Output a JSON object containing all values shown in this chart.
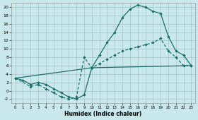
{
  "xlabel": "Humidex (Indice chaleur)",
  "background_color": "#c8e8ec",
  "grid_color": "#9bbcbe",
  "line_color": "#1a6e68",
  "xlim": [
    -0.5,
    23.5
  ],
  "ylim": [
    -3.0,
    21.0
  ],
  "xticks": [
    0,
    1,
    2,
    3,
    4,
    5,
    6,
    7,
    8,
    9,
    10,
    11,
    12,
    13,
    14,
    15,
    16,
    17,
    18,
    19,
    20,
    21,
    22,
    23
  ],
  "yticks": [
    -2,
    0,
    2,
    4,
    6,
    8,
    10,
    12,
    14,
    16,
    18,
    20
  ],
  "curve1_x": [
    0,
    1,
    2,
    3,
    4,
    5,
    6,
    7,
    8,
    9,
    10,
    11,
    12,
    13,
    14,
    15,
    16,
    17,
    18,
    19,
    20,
    21,
    22,
    23
  ],
  "curve1_y": [
    3.0,
    2.5,
    1.5,
    2.0,
    1.5,
    0.5,
    -0.5,
    -1.5,
    -2.0,
    -1.0,
    5.5,
    8.5,
    11.5,
    14.0,
    17.5,
    19.5,
    20.5,
    20.0,
    19.0,
    18.5,
    13.0,
    9.5,
    8.5,
    6.0
  ],
  "curve2_x": [
    0,
    2,
    3,
    4,
    5,
    6,
    7,
    8,
    9,
    10,
    11,
    12,
    13,
    14,
    15,
    16,
    17,
    18,
    19,
    20,
    21,
    22,
    23
  ],
  "curve2_y": [
    3.0,
    1.0,
    1.5,
    0.5,
    -0.5,
    -1.5,
    -2.0,
    -1.5,
    8.0,
    5.5,
    6.5,
    7.5,
    8.5,
    9.5,
    10.0,
    10.5,
    11.0,
    11.5,
    12.5,
    9.5,
    8.0,
    6.0,
    6.0
  ],
  "curve3_x": [
    0,
    10,
    23
  ],
  "curve3_y": [
    3.0,
    5.5,
    6.0
  ]
}
